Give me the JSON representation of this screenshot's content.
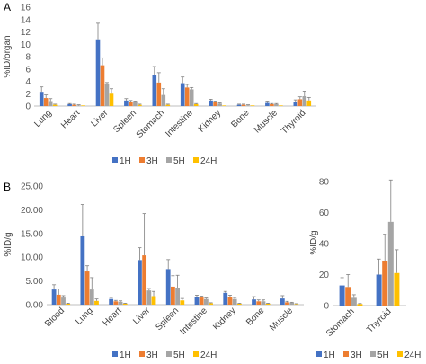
{
  "series_colors": [
    "#4472C4",
    "#ED7D31",
    "#A5A5A5",
    "#FFC000"
  ],
  "chart_data": [
    {
      "panel": "A",
      "type": "bar",
      "ylabel": "%ID/organ",
      "ylim": [
        0,
        16
      ],
      "yticks": [
        "0",
        "2",
        "4",
        "6",
        "8",
        "10",
        "12",
        "14",
        "16"
      ],
      "ytick_values": [
        0,
        2,
        4,
        6,
        8,
        10,
        12,
        14,
        16
      ],
      "categories": [
        "Lung",
        "Heart",
        "Liver",
        "Spleen",
        "Stomach",
        "Intestine",
        "Kidney",
        "Bone",
        "Muscle",
        "Thyroid"
      ],
      "series": [
        {
          "name": "1H",
          "values": [
            2.3,
            0.3,
            10.8,
            0.9,
            5.0,
            3.7,
            0.9,
            0.2,
            0.5,
            0.7
          ],
          "errors": [
            0.8,
            0.1,
            2.6,
            0.3,
            1.4,
            1.0,
            0.2,
            0.1,
            0.3,
            0.3
          ]
        },
        {
          "name": "3H",
          "values": [
            1.3,
            0.2,
            6.6,
            0.7,
            3.8,
            3.0,
            0.6,
            0.2,
            0.3,
            1.1
          ],
          "errors": [
            0.5,
            0.1,
            1.2,
            0.2,
            1.6,
            0.5,
            0.2,
            0.1,
            0.1,
            0.4
          ]
        },
        {
          "name": "5H",
          "values": [
            0.8,
            0.1,
            3.5,
            0.6,
            1.8,
            2.7,
            0.4,
            0.1,
            0.3,
            1.6
          ],
          "errors": [
            0.4,
            0.1,
            0.3,
            0.2,
            1.0,
            0.3,
            0.1,
            0.1,
            0.1,
            0.8
          ]
        },
        {
          "name": "24H",
          "values": [
            0.2,
            0.1,
            2.0,
            0.2,
            0.2,
            0.3,
            0.1,
            0.1,
            0.1,
            0.9
          ],
          "errors": [
            0.1,
            0.0,
            0.8,
            0.1,
            0.1,
            0.1,
            0.0,
            0.0,
            0.0,
            0.5
          ]
        }
      ],
      "legend": [
        "1H",
        "3H",
        "5H",
        "24H"
      ],
      "grid": false
    },
    {
      "panel": "B",
      "type": "bar",
      "ylabel": "%ID/g",
      "ylim": [
        0,
        25
      ],
      "yticks": [
        "0.00",
        "5.00",
        "10.00",
        "15.00",
        "20.00",
        "25.00"
      ],
      "ytick_values": [
        0,
        5,
        10,
        15,
        20,
        25
      ],
      "categories": [
        "Blood",
        "Lung",
        "Heart",
        "Liver",
        "Spleen",
        "Intestine",
        "Kidney",
        "Bone",
        "Muscle"
      ],
      "series": [
        {
          "name": "1H",
          "values": [
            3.2,
            14.4,
            1.2,
            9.4,
            7.5,
            1.6,
            2.5,
            1.1,
            1.3
          ],
          "errors": [
            1.0,
            6.7,
            0.3,
            2.6,
            2.0,
            0.4,
            0.3,
            0.6,
            0.6
          ]
        },
        {
          "name": "3H",
          "values": [
            2.1,
            7.0,
            0.7,
            10.4,
            3.8,
            1.5,
            1.6,
            0.7,
            0.5
          ],
          "errors": [
            1.2,
            1.2,
            0.2,
            8.8,
            2.3,
            0.3,
            0.4,
            0.3,
            0.2
          ]
        },
        {
          "name": "5H",
          "values": [
            1.5,
            3.2,
            0.6,
            3.0,
            3.6,
            1.2,
            1.2,
            0.7,
            0.4
          ],
          "errors": [
            0.4,
            2.5,
            0.2,
            0.4,
            2.6,
            0.2,
            0.3,
            0.3,
            0.1
          ]
        },
        {
          "name": "24H",
          "values": [
            0.2,
            0.8,
            0.2,
            1.8,
            0.9,
            0.3,
            0.2,
            0.2,
            0.1
          ],
          "errors": [
            0.1,
            0.4,
            0.1,
            1.0,
            0.4,
            0.1,
            0.1,
            0.1,
            0.1
          ]
        }
      ],
      "legend": [
        "1H",
        "3H",
        "5H",
        "24H"
      ],
      "grid": false
    },
    {
      "panel": "B-inset",
      "type": "bar",
      "ylabel": "%ID/g",
      "ylim": [
        0,
        80
      ],
      "yticks": [
        "0",
        "20",
        "40",
        "60",
        "80"
      ],
      "ytick_values": [
        0,
        20,
        40,
        60,
        80
      ],
      "categories": [
        "Stomach",
        "Thyroid"
      ],
      "series": [
        {
          "name": "1H",
          "values": [
            13.0,
            20.0
          ],
          "errors": [
            5.0,
            10.0
          ]
        },
        {
          "name": "3H",
          "values": [
            12.0,
            29.0
          ],
          "errors": [
            8.0,
            17.0
          ]
        },
        {
          "name": "5H",
          "values": [
            5.0,
            54.0
          ],
          "errors": [
            2.0,
            27.0
          ]
        },
        {
          "name": "24H",
          "values": [
            1.0,
            21.0
          ],
          "errors": [
            0.3,
            15.0
          ]
        }
      ],
      "legend": [
        "1H",
        "3H",
        "5H",
        "24H"
      ],
      "grid": false
    }
  ]
}
